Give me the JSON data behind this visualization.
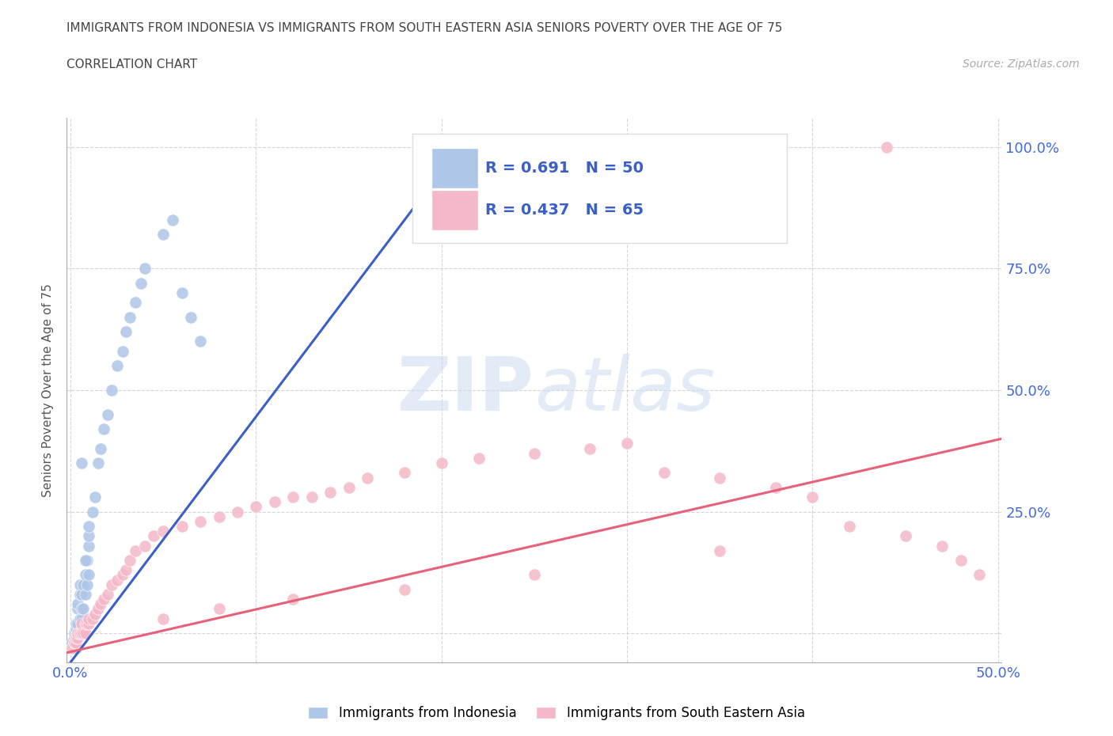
{
  "title_line1": "IMMIGRANTS FROM INDONESIA VS IMMIGRANTS FROM SOUTH EASTERN ASIA SENIORS POVERTY OVER THE AGE OF 75",
  "title_line2": "CORRELATION CHART",
  "source": "Source: ZipAtlas.com",
  "ylabel": "Seniors Poverty Over the Age of 75",
  "xlim": [
    -0.002,
    0.502
  ],
  "ylim": [
    -0.06,
    1.06
  ],
  "xtick_positions": [
    0.0,
    0.1,
    0.2,
    0.3,
    0.4,
    0.5
  ],
  "xticklabels": [
    "0.0%",
    "",
    "",
    "",
    "",
    "50.0%"
  ],
  "ytick_positions": [
    0.0,
    0.25,
    0.5,
    0.75,
    1.0
  ],
  "yticklabels_right": [
    "",
    "25.0%",
    "50.0%",
    "75.0%",
    "100.0%"
  ],
  "color_blue": "#aec6e8",
  "color_pink": "#f4b8c8",
  "line_blue": "#3a5fc8",
  "line_pink": "#e8617a",
  "watermark_zip": "ZIP",
  "watermark_atlas": "atlas",
  "legend_r_blue": "R = 0.691",
  "legend_n_blue": "N = 50",
  "legend_r_pink": "R = 0.437",
  "legend_n_pink": "N = 65",
  "blue_scatter_x": [
    0.001,
    0.002,
    0.002,
    0.003,
    0.003,
    0.003,
    0.003,
    0.004,
    0.004,
    0.004,
    0.004,
    0.005,
    0.005,
    0.005,
    0.005,
    0.006,
    0.006,
    0.006,
    0.007,
    0.007,
    0.008,
    0.008,
    0.009,
    0.009,
    0.01,
    0.01,
    0.01,
    0.012,
    0.013,
    0.015,
    0.016,
    0.018,
    0.02,
    0.022,
    0.025,
    0.028,
    0.03,
    0.032,
    0.035,
    0.038,
    0.04,
    0.05,
    0.055,
    0.06,
    0.065,
    0.07,
    0.19,
    0.01,
    0.008,
    0.006
  ],
  "blue_scatter_y": [
    -0.02,
    -0.01,
    0.0,
    -0.03,
    0.0,
    0.01,
    0.02,
    0.0,
    0.02,
    0.05,
    0.06,
    0.0,
    0.03,
    0.08,
    0.1,
    0.03,
    0.05,
    0.08,
    0.05,
    0.1,
    0.08,
    0.12,
    0.1,
    0.15,
    0.12,
    0.18,
    0.2,
    0.25,
    0.28,
    0.35,
    0.38,
    0.42,
    0.45,
    0.5,
    0.55,
    0.58,
    0.62,
    0.65,
    0.68,
    0.72,
    0.75,
    0.82,
    0.85,
    0.7,
    0.65,
    0.6,
    1.0,
    0.22,
    0.15,
    0.35
  ],
  "pink_scatter_x": [
    0.001,
    0.002,
    0.002,
    0.003,
    0.003,
    0.004,
    0.004,
    0.005,
    0.005,
    0.006,
    0.006,
    0.007,
    0.008,
    0.008,
    0.009,
    0.01,
    0.01,
    0.012,
    0.013,
    0.015,
    0.016,
    0.018,
    0.02,
    0.022,
    0.025,
    0.028,
    0.03,
    0.032,
    0.035,
    0.04,
    0.045,
    0.05,
    0.06,
    0.07,
    0.08,
    0.09,
    0.1,
    0.11,
    0.12,
    0.13,
    0.14,
    0.15,
    0.16,
    0.18,
    0.2,
    0.22,
    0.25,
    0.28,
    0.3,
    0.32,
    0.35,
    0.38,
    0.4,
    0.42,
    0.45,
    0.47,
    0.48,
    0.49,
    0.35,
    0.25,
    0.18,
    0.12,
    0.08,
    0.05,
    0.44
  ],
  "pink_scatter_y": [
    -0.03,
    -0.02,
    -0.02,
    -0.02,
    -0.01,
    -0.01,
    0.0,
    0.0,
    0.0,
    0.0,
    0.02,
    0.0,
    0.0,
    0.02,
    0.02,
    0.02,
    0.03,
    0.03,
    0.04,
    0.05,
    0.06,
    0.07,
    0.08,
    0.1,
    0.11,
    0.12,
    0.13,
    0.15,
    0.17,
    0.18,
    0.2,
    0.21,
    0.22,
    0.23,
    0.24,
    0.25,
    0.26,
    0.27,
    0.28,
    0.28,
    0.29,
    0.3,
    0.32,
    0.33,
    0.35,
    0.36,
    0.37,
    0.38,
    0.39,
    0.33,
    0.32,
    0.3,
    0.28,
    0.22,
    0.2,
    0.18,
    0.15,
    0.12,
    0.17,
    0.12,
    0.09,
    0.07,
    0.05,
    0.03,
    1.0
  ],
  "blue_line_x": [
    -0.002,
    0.19
  ],
  "blue_line_y": [
    -0.07,
    0.9
  ],
  "pink_line_x": [
    -0.002,
    0.502
  ],
  "pink_line_y": [
    -0.04,
    0.4
  ]
}
